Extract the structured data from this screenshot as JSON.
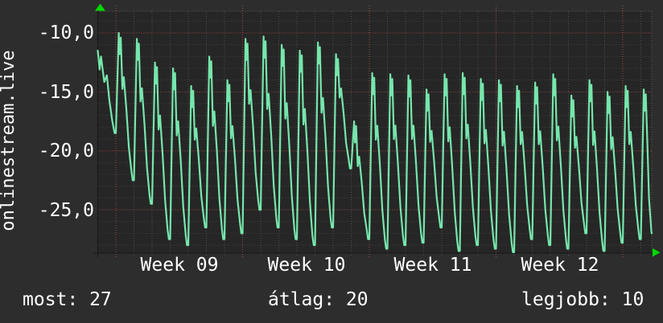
{
  "site": {
    "label": "onlinestream.live"
  },
  "axes": {
    "y_labels": [
      "-10,0",
      "-15,0",
      "-20,0",
      "-25,0"
    ],
    "x_labels": [
      "Week 09",
      "Week 10",
      "Week 11",
      "Week 12"
    ]
  },
  "stats": {
    "most": "most: 27",
    "atlag": "átlag: 20",
    "legjobb": "legjobb: 10"
  },
  "chart_data": {
    "type": "line",
    "title": "onlinestream.live",
    "xlabel": "",
    "ylabel": "",
    "x_tick_labels": [
      "Week 09",
      "Week 10",
      "Week 11",
      "Week 12"
    ],
    "y_tick_values": [
      -10,
      -15,
      -20,
      -25
    ],
    "ylim": [
      -28.65,
      -8.2
    ],
    "x_range_days": 30.6,
    "grid": true,
    "legend_position": "none",
    "current": 27,
    "average": 20,
    "best": 10,
    "series": [
      {
        "name": "onlinestream.live (value plotted negated, daily cycles)",
        "days": [
          {
            "p": -11.5,
            "t": -18.5
          },
          {
            "p": -10.0,
            "t": -22.5
          },
          {
            "p": -10.5,
            "t": -24.5
          },
          {
            "p": -12.5,
            "t": -27.5
          },
          {
            "p": -13.0,
            "t": -28.0
          },
          {
            "p": -14.5,
            "t": -26.5
          },
          {
            "p": -12.0,
            "t": -27.5
          },
          {
            "p": -14.0,
            "t": -27.0
          },
          {
            "p": -10.5,
            "t": -25.0
          },
          {
            "p": -10.3,
            "t": -26.5
          },
          {
            "p": -11.0,
            "t": -27.5
          },
          {
            "p": -11.5,
            "t": -28.0
          },
          {
            "p": -10.8,
            "t": -26.5
          },
          {
            "p": -11.8,
            "t": -21.5
          },
          {
            "p": -17.5,
            "t": -27.5
          },
          {
            "p": -13.4,
            "t": -28.3
          },
          {
            "p": -13.5,
            "t": -28.0
          },
          {
            "p": -13.6,
            "t": -27.8
          },
          {
            "p": -14.8,
            "t": -26.5
          },
          {
            "p": -13.5,
            "t": -28.5
          },
          {
            "p": -13.4,
            "t": -28.0
          },
          {
            "p": -13.9,
            "t": -28.3
          },
          {
            "p": -14.0,
            "t": -28.6
          },
          {
            "p": -14.5,
            "t": -27.5
          },
          {
            "p": -14.2,
            "t": -28.0
          },
          {
            "p": -13.5,
            "t": -28.3
          },
          {
            "p": -15.3,
            "t": -27.0
          },
          {
            "p": -14.0,
            "t": -28.5
          },
          {
            "p": -15.0,
            "t": -27.8
          },
          {
            "p": -14.5,
            "t": -27.5
          },
          {
            "p": -14.8,
            "t": -27.0
          }
        ]
      }
    ],
    "day_shape": [
      {
        "f": 0.0,
        "k": "t0"
      },
      {
        "f": 0.07,
        "k": "rise",
        "a": 0.45
      },
      {
        "f": 0.16,
        "k": "p"
      },
      {
        "f": 0.21,
        "k": "pm",
        "a": 1.8
      },
      {
        "f": 0.27,
        "k": "pm",
        "a": 0.4
      },
      {
        "f": 0.36,
        "k": "fall",
        "a": 0.38
      },
      {
        "f": 0.44,
        "k": "fall",
        "a": 0.3
      },
      {
        "f": 0.58,
        "k": "fall",
        "a": 0.52
      },
      {
        "f": 0.72,
        "k": "fall",
        "a": 0.78
      },
      {
        "f": 0.86,
        "k": "tp",
        "a": 0.8
      },
      {
        "f": 0.93,
        "k": "t"
      }
    ],
    "day0_shape": [
      {
        "f": 0.0,
        "k": "p"
      },
      {
        "f": 0.1,
        "k": "pm",
        "a": 1.6
      },
      {
        "f": 0.18,
        "k": "pm",
        "a": 0.5
      },
      {
        "f": 0.36,
        "k": "fall",
        "a": 0.38
      },
      {
        "f": 0.5,
        "k": "fall",
        "a": 0.3
      },
      {
        "f": 0.64,
        "k": "fall",
        "a": 0.6
      },
      {
        "f": 0.8,
        "k": "fall",
        "a": 0.85
      },
      {
        "f": 0.93,
        "k": "t"
      }
    ],
    "edge_tail": [
      {
        "d": 30.45,
        "v": -24.0
      },
      {
        "d": 30.58,
        "v": -26.8
      },
      {
        "d": 30.6,
        "v": -27.0
      }
    ],
    "colors": {
      "line": "#76e6ac",
      "grid_minor": "#3e3e3e",
      "grid_day": "#4f4f4f",
      "grid_major": "#a34747",
      "grid_week": "#a34747",
      "border": "#5a5a5a",
      "axis": "#161616",
      "arrow": "#00d800",
      "bg_outer": "#2d2d2d",
      "bg_plot": "#262626",
      "text": "#ffffff"
    }
  }
}
